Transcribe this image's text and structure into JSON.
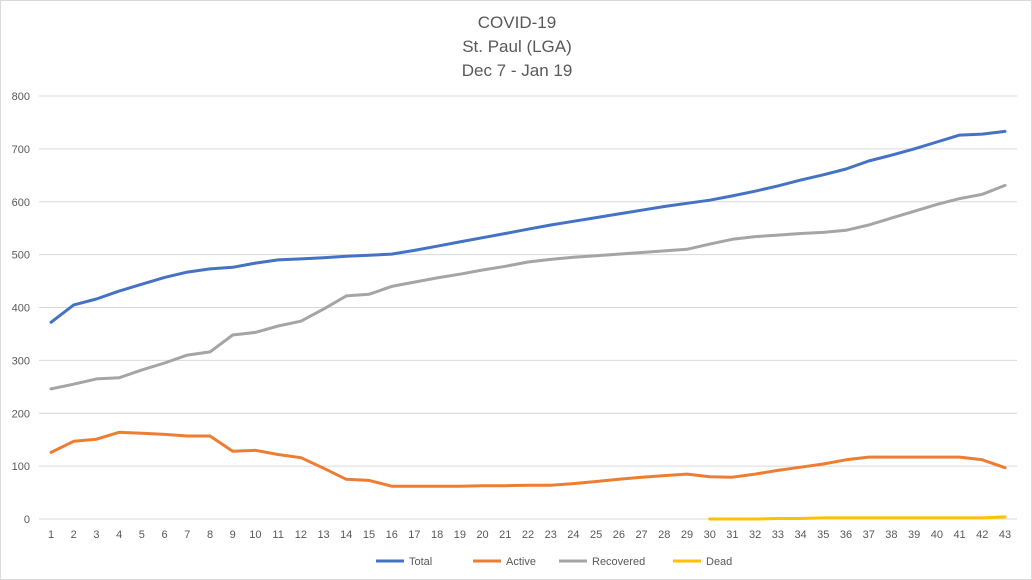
{
  "chart_data": {
    "type": "line",
    "title": [
      "COVID-19",
      "St. Paul (LGA)",
      "Dec 7 - Jan 19"
    ],
    "xlabel": "",
    "ylabel": "",
    "ylim": [
      0,
      800
    ],
    "yticks": [
      0,
      100,
      200,
      300,
      400,
      500,
      600,
      700,
      800
    ],
    "grid": true,
    "legend": "bottom",
    "x": [
      1,
      2,
      3,
      4,
      5,
      6,
      7,
      8,
      9,
      10,
      11,
      12,
      13,
      14,
      15,
      16,
      17,
      18,
      19,
      20,
      21,
      22,
      23,
      24,
      25,
      26,
      27,
      28,
      29,
      30,
      31,
      32,
      33,
      34,
      35,
      36,
      37,
      38,
      39,
      40,
      41,
      42,
      43
    ],
    "series": [
      {
        "name": "Total",
        "color": "#4472c4",
        "values": [
          372,
          405,
          416,
          431,
          444,
          457,
          467,
          473,
          476,
          484,
          490,
          492,
          494,
          497,
          499,
          501,
          508,
          516,
          524,
          532,
          540,
          548,
          556,
          563,
          570,
          577,
          584,
          591,
          597,
          603,
          611,
          620,
          630,
          641,
          651,
          662,
          677,
          688,
          700,
          713,
          726,
          728,
          733
        ]
      },
      {
        "name": "Active",
        "color": "#ed7d31",
        "values": [
          126,
          147,
          151,
          164,
          162,
          160,
          157,
          157,
          128,
          130,
          122,
          116,
          96,
          75,
          73,
          62,
          62,
          62,
          62,
          63,
          63,
          64,
          64,
          67,
          71,
          75,
          79,
          82,
          85,
          80,
          79,
          85,
          92,
          98,
          104,
          112,
          117,
          117,
          117,
          117,
          117,
          112,
          97
        ]
      },
      {
        "name": "Recovered",
        "color": "#a5a5a5",
        "values": [
          246,
          255,
          265,
          267,
          282,
          295,
          310,
          316,
          348,
          353,
          365,
          374,
          397,
          422,
          425,
          440,
          448,
          456,
          463,
          471,
          478,
          486,
          491,
          495,
          498,
          501,
          504,
          507,
          510,
          520,
          529,
          534,
          537,
          540,
          542,
          546,
          556,
          569,
          582,
          595,
          606,
          614,
          631
        ]
      },
      {
        "name": "Dead",
        "color": "#ffc000",
        "values": [
          null,
          null,
          null,
          null,
          null,
          null,
          null,
          null,
          null,
          null,
          null,
          null,
          null,
          null,
          null,
          null,
          null,
          null,
          null,
          null,
          null,
          null,
          null,
          null,
          null,
          null,
          null,
          null,
          null,
          0,
          0,
          0,
          1,
          1,
          2,
          2,
          2,
          2,
          2,
          2,
          2,
          2,
          4
        ]
      }
    ]
  }
}
